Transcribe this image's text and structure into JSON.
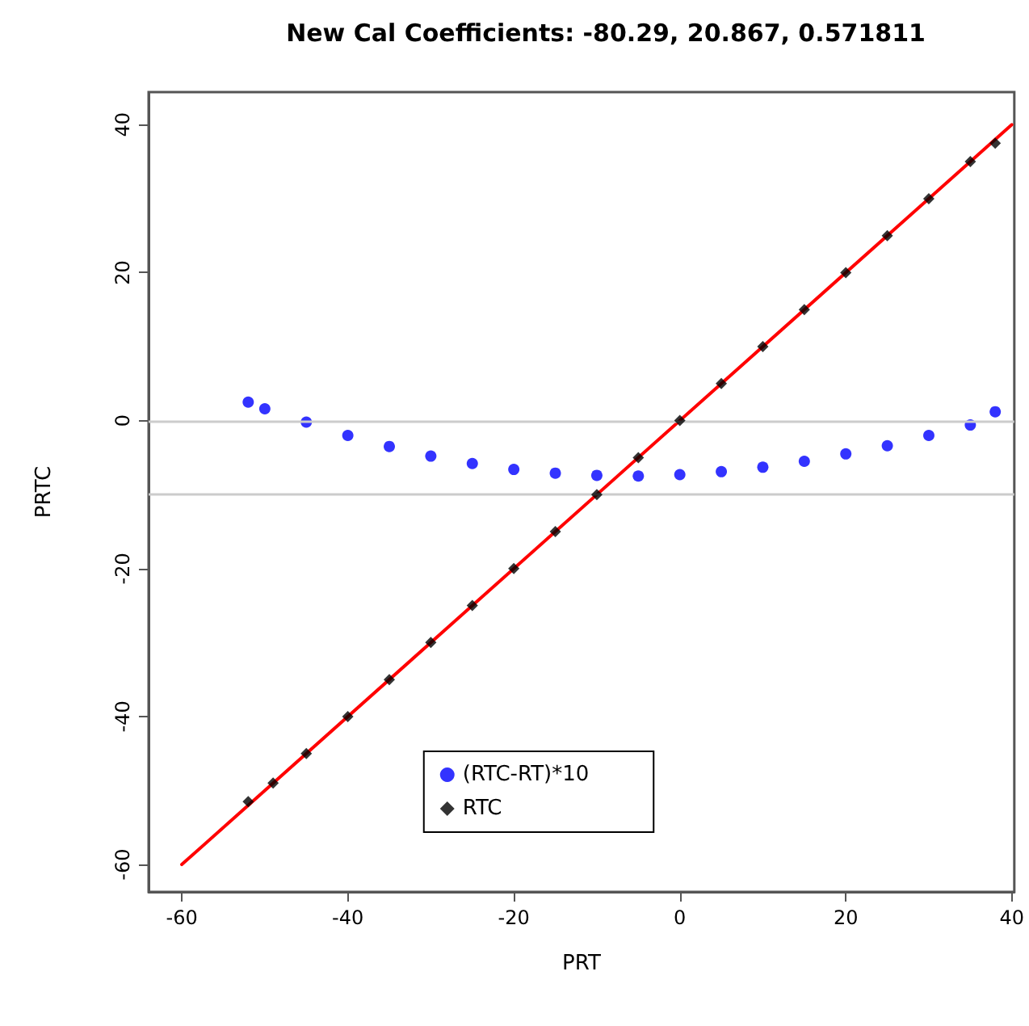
{
  "chart_data": {
    "type": "scatter",
    "title": "New Cal Coefficients: -80.29, 20.867, 0.571811",
    "xlabel": "PRT",
    "ylabel": "PRTC",
    "xlim": [
      -64,
      40.3
    ],
    "ylim": [
      -63.7,
      44.4
    ],
    "xticks": [
      -60,
      -40,
      -20,
      0,
      20,
      40
    ],
    "yticks": [
      -60,
      -40,
      -20,
      0,
      20,
      40
    ],
    "grid": false,
    "legend": "bottom",
    "ref_lines": [
      {
        "axis": "y",
        "value": 0,
        "color": "#cccccc"
      },
      {
        "axis": "y",
        "value": -10,
        "color": "#cccccc"
      }
    ],
    "series": [
      {
        "name": "(RTC-RT)*10",
        "color": "#0000ff",
        "marker": "circle",
        "x": [
          -52,
          -50,
          -45,
          -40,
          -35,
          -30,
          -25,
          -20,
          -15,
          -10,
          -5,
          0,
          5,
          10,
          15,
          20,
          25,
          30,
          35,
          38
        ],
        "values": [
          2.5,
          1.6,
          -0.2,
          -2,
          -3.5,
          -4.8,
          -5.8,
          -6.6,
          -7.1,
          -7.4,
          -7.5,
          -7.3,
          -6.9,
          -6.3,
          -5.5,
          -4.5,
          -3.4,
          -2,
          -0.6,
          1.2
        ]
      },
      {
        "name": "RTC",
        "color": "#000000",
        "marker": "diamond",
        "x": [
          -52,
          -49,
          -45,
          -40,
          -35,
          -30,
          -25,
          -20,
          -15,
          -10,
          -5,
          0,
          5,
          10,
          15,
          20,
          25,
          30,
          35,
          38
        ],
        "values": [
          -51.5,
          -49,
          -45,
          -40,
          -35,
          -30,
          -25,
          -20,
          -15,
          -10,
          -5,
          0,
          5,
          10,
          15,
          20,
          25,
          30,
          35,
          37.5
        ]
      },
      {
        "type": "line",
        "color": "#ff0000",
        "marker": "none",
        "x": [
          -60,
          40
        ],
        "values": [
          -60,
          40
        ]
      }
    ]
  }
}
